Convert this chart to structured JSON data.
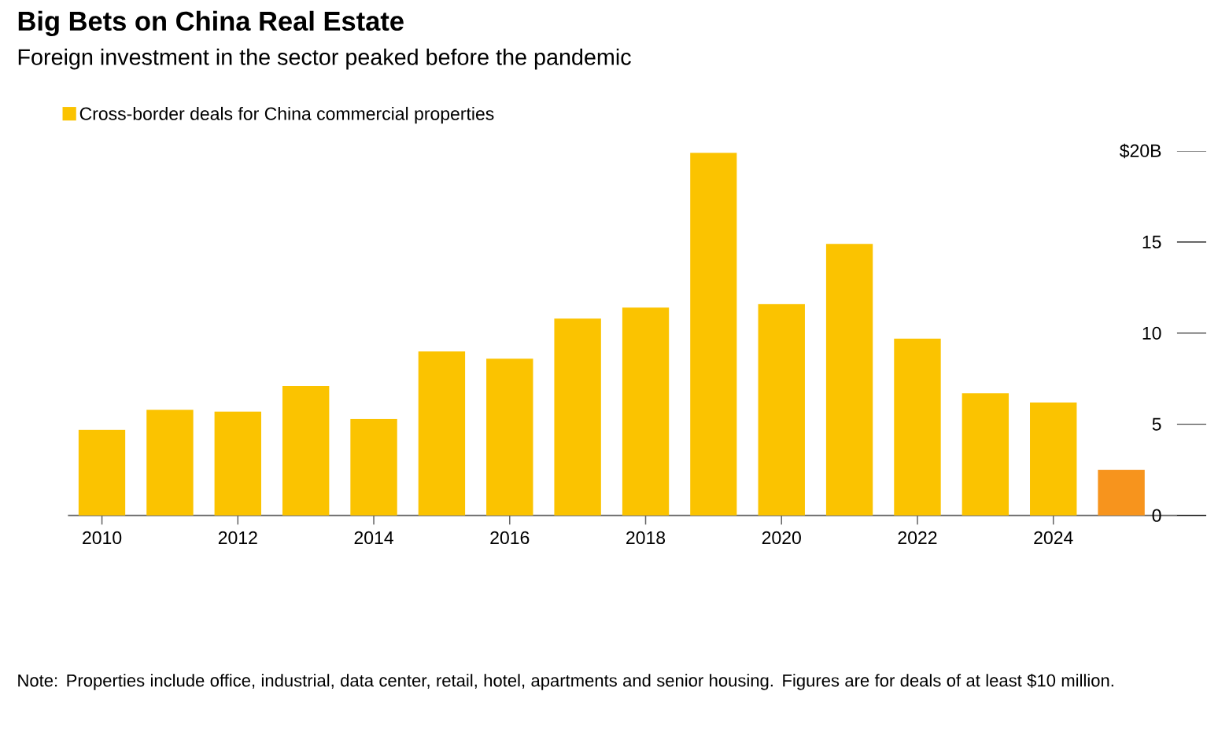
{
  "chart_data": {
    "type": "bar",
    "title": "Big Bets on China Real Estate",
    "subtitle": "Foreign investment in the sector peaked before the pandemic",
    "categories": [
      "2010",
      null,
      "2012",
      null,
      "2014",
      null,
      "2016",
      null,
      "2018",
      null,
      "2020",
      null,
      "2022",
      null,
      "2024",
      null
    ],
    "series": [
      {
        "name": "Cross-border deals for China commercial properties",
        "color": "#fbc300",
        "values": [
          4.7,
          5.8,
          5.7,
          7.1,
          5.3,
          9.0,
          8.6,
          10.8,
          11.4,
          19.9,
          11.6,
          14.9,
          9.7,
          6.7,
          6.2,
          2.5
        ],
        "colors": [
          "#fbc300",
          "#fbc300",
          "#fbc300",
          "#fbc300",
          "#fbc300",
          "#fbc300",
          "#fbc300",
          "#fbc300",
          "#fbc300",
          "#fbc300",
          "#fbc300",
          "#fbc300",
          "#fbc300",
          "#fbc300",
          "#fbc300",
          "#f7941d"
        ]
      }
    ],
    "ylim": [
      0,
      20
    ],
    "yticks": [
      0,
      5,
      10,
      15,
      {
        "value": 20,
        "label": "$20B"
      }
    ],
    "legend": "top left",
    "annotations": [
      "Note: Properties include office, industrial, data center, retail, hotel, apartments and senior housing. Figures are for deals of at least $10 million."
    ]
  }
}
